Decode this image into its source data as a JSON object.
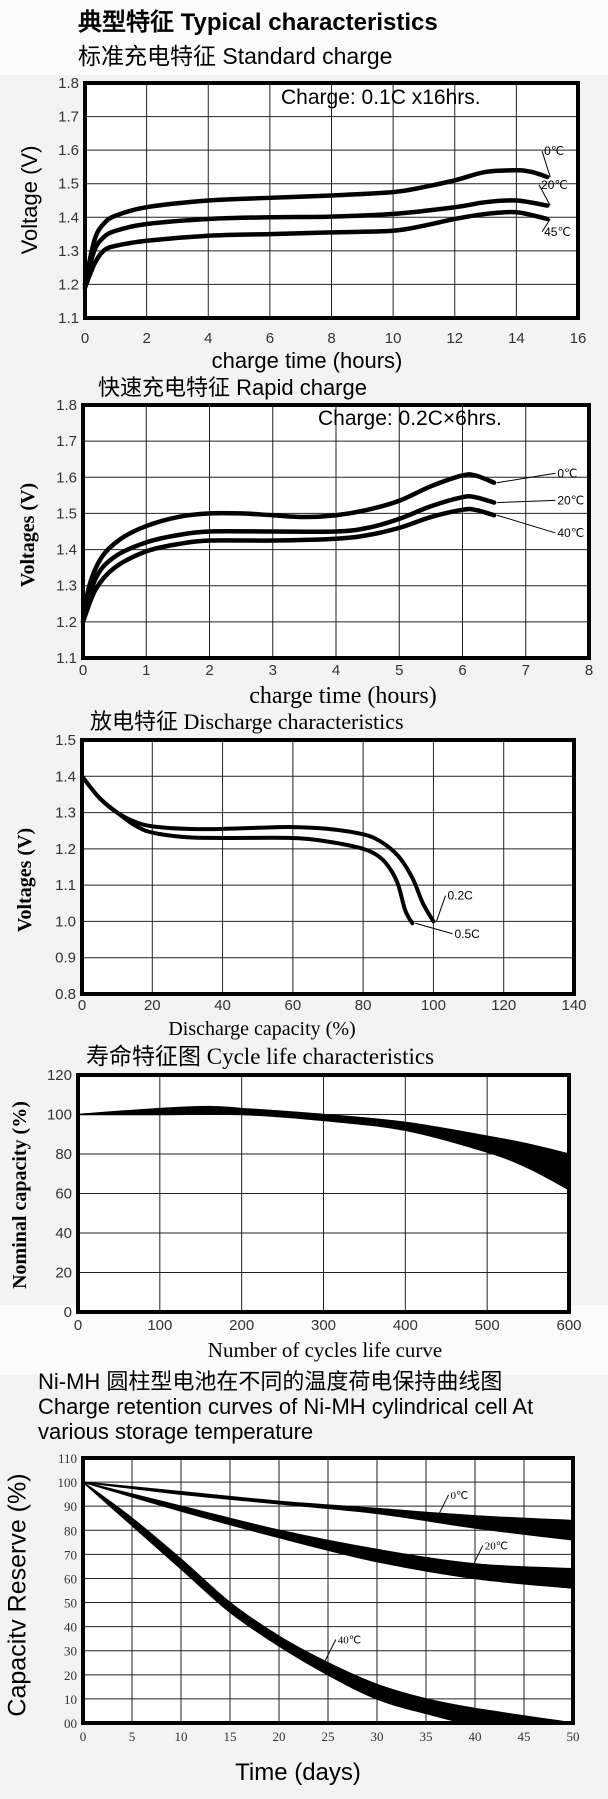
{
  "page": {
    "main_title": "典型特征 Typical characteristics",
    "retention_title_cn": "Ni-MH 圆柱型电池在不同的温度荷电保持曲线图",
    "retention_title_en_1": "Charge retention curves of Ni-MH cylindrical cell At",
    "retention_title_en_2": "various storage temperature"
  },
  "chart_data": [
    {
      "id": "standard",
      "type": "line",
      "title": "标准充电特征 Standard charge",
      "annotation": "Charge: 0.1C  x16hrs.",
      "xlabel": "charge time (hours)",
      "ylabel": "Voltage (V)",
      "xlim": [
        0,
        16
      ],
      "ylim": [
        1.1,
        1.8
      ],
      "xstep": 2,
      "ystep": 0.1,
      "xticks": [
        "0",
        "2",
        "4",
        "6",
        "8",
        "10",
        "12",
        "14",
        "16"
      ],
      "yticks": [
        "1.1",
        "1.2",
        "1.3",
        "1.4",
        "1.5",
        "1.6",
        "1.7",
        "1.8"
      ],
      "grid": true,
      "series": [
        {
          "name": "0℃",
          "label_at": [
            14.9,
            1.585
          ],
          "points": [
            [
              0,
              1.2
            ],
            [
              0.3,
              1.33
            ],
            [
              0.6,
              1.38
            ],
            [
              1,
              1.405
            ],
            [
              2,
              1.43
            ],
            [
              4,
              1.45
            ],
            [
              6,
              1.458
            ],
            [
              8,
              1.465
            ],
            [
              10,
              1.475
            ],
            [
              11,
              1.49
            ],
            [
              12,
              1.51
            ],
            [
              13,
              1.535
            ],
            [
              14,
              1.54
            ],
            [
              14.5,
              1.535
            ],
            [
              15,
              1.52
            ]
          ]
        },
        {
          "name": "20℃",
          "label_at": [
            14.8,
            1.485
          ],
          "points": [
            [
              0,
              1.2
            ],
            [
              0.3,
              1.3
            ],
            [
              0.6,
              1.34
            ],
            [
              1,
              1.36
            ],
            [
              2,
              1.38
            ],
            [
              4,
              1.395
            ],
            [
              6,
              1.4
            ],
            [
              8,
              1.402
            ],
            [
              10,
              1.41
            ],
            [
              12,
              1.43
            ],
            [
              13,
              1.445
            ],
            [
              14,
              1.45
            ],
            [
              15,
              1.435
            ]
          ]
        },
        {
          "name": "45℃",
          "label_at": [
            14.9,
            1.345
          ],
          "points": [
            [
              0,
              1.19
            ],
            [
              0.3,
              1.26
            ],
            [
              0.6,
              1.3
            ],
            [
              1,
              1.315
            ],
            [
              2,
              1.33
            ],
            [
              4,
              1.345
            ],
            [
              6,
              1.35
            ],
            [
              8,
              1.355
            ],
            [
              10,
              1.36
            ],
            [
              11,
              1.375
            ],
            [
              12,
              1.395
            ],
            [
              13,
              1.41
            ],
            [
              14,
              1.415
            ],
            [
              15,
              1.395
            ]
          ]
        }
      ]
    },
    {
      "id": "rapid",
      "type": "line",
      "title": "快速充电特征 Rapid charge",
      "annotation": "Charge: 0.2C×6hrs.",
      "xlabel": "charge time (hours)",
      "ylabel": "Voltages (V)",
      "xlim": [
        0,
        8
      ],
      "ylim": [
        1.1,
        1.8
      ],
      "xstep": 1,
      "ystep": 0.1,
      "xticks": [
        "0",
        "1",
        "2",
        "3",
        "4",
        "5",
        "6",
        "7",
        "8"
      ],
      "yticks": [
        "1.1",
        "1.2",
        "1.3",
        "1.4",
        "1.5",
        "1.6",
        "1.7",
        "1.8"
      ],
      "grid": true,
      "series": [
        {
          "name": "0℃",
          "label_at": [
            7.5,
            1.6
          ],
          "points": [
            [
              0,
              1.2
            ],
            [
              0.1,
              1.3
            ],
            [
              0.3,
              1.38
            ],
            [
              0.6,
              1.43
            ],
            [
              1,
              1.465
            ],
            [
              1.5,
              1.49
            ],
            [
              2,
              1.5
            ],
            [
              2.5,
              1.5
            ],
            [
              3,
              1.495
            ],
            [
              3.5,
              1.49
            ],
            [
              4,
              1.495
            ],
            [
              4.5,
              1.51
            ],
            [
              5,
              1.535
            ],
            [
              5.5,
              1.575
            ],
            [
              6,
              1.605
            ],
            [
              6.2,
              1.605
            ],
            [
              6.5,
              1.585
            ]
          ]
        },
        {
          "name": "20℃",
          "label_at": [
            7.5,
            1.525
          ],
          "points": [
            [
              0,
              1.2
            ],
            [
              0.2,
              1.32
            ],
            [
              0.5,
              1.38
            ],
            [
              1,
              1.42
            ],
            [
              1.5,
              1.44
            ],
            [
              2,
              1.45
            ],
            [
              3,
              1.45
            ],
            [
              4,
              1.45
            ],
            [
              4.5,
              1.46
            ],
            [
              5,
              1.485
            ],
            [
              5.5,
              1.52
            ],
            [
              6,
              1.545
            ],
            [
              6.2,
              1.545
            ],
            [
              6.5,
              1.53
            ]
          ]
        },
        {
          "name": "40℃",
          "label_at": [
            7.5,
            1.435
          ],
          "points": [
            [
              0,
              1.2
            ],
            [
              0.2,
              1.29
            ],
            [
              0.5,
              1.35
            ],
            [
              1,
              1.395
            ],
            [
              1.5,
              1.415
            ],
            [
              2,
              1.425
            ],
            [
              3,
              1.425
            ],
            [
              4,
              1.43
            ],
            [
              4.5,
              1.44
            ],
            [
              5,
              1.46
            ],
            [
              5.5,
              1.49
            ],
            [
              6,
              1.51
            ],
            [
              6.2,
              1.51
            ],
            [
              6.5,
              1.495
            ]
          ]
        }
      ]
    },
    {
      "id": "discharge",
      "type": "line",
      "title": "放电特征 Discharge characteristics",
      "xlabel": "Discharge capacity (%)",
      "ylabel": "Voltages (V)",
      "xlim": [
        0,
        140
      ],
      "ylim": [
        0.8,
        1.5
      ],
      "xstep": 20,
      "ystep": 0.1,
      "xticks": [
        "0",
        "20",
        "40",
        "60",
        "80",
        "100",
        "120",
        "140"
      ],
      "yticks": [
        "0.8",
        "0.9",
        "1.0",
        "1.1",
        "1.2",
        "1.3",
        "1.4",
        "1.5"
      ],
      "grid": true,
      "series": [
        {
          "name": "0.2C",
          "label_at": [
            104,
            1.06
          ],
          "points": [
            [
              0,
              1.4
            ],
            [
              5,
              1.34
            ],
            [
              10,
              1.3
            ],
            [
              15,
              1.275
            ],
            [
              20,
              1.262
            ],
            [
              30,
              1.255
            ],
            [
              40,
              1.255
            ],
            [
              50,
              1.258
            ],
            [
              60,
              1.26
            ],
            [
              70,
              1.255
            ],
            [
              80,
              1.24
            ],
            [
              85,
              1.22
            ],
            [
              90,
              1.18
            ],
            [
              94,
              1.12
            ],
            [
              97,
              1.05
            ],
            [
              100,
              1.0
            ]
          ]
        },
        {
          "name": "0.5C",
          "label_at": [
            106,
            0.955
          ],
          "points": [
            [
              0,
              1.4
            ],
            [
              5,
              1.34
            ],
            [
              10,
              1.3
            ],
            [
              15,
              1.265
            ],
            [
              20,
              1.245
            ],
            [
              30,
              1.232
            ],
            [
              40,
              1.23
            ],
            [
              60,
              1.23
            ],
            [
              70,
              1.22
            ],
            [
              80,
              1.2
            ],
            [
              85,
              1.175
            ],
            [
              88,
              1.14
            ],
            [
              90,
              1.1
            ],
            [
              92,
              1.03
            ],
            [
              94,
              0.995
            ]
          ]
        }
      ]
    },
    {
      "id": "cycle",
      "type": "area",
      "title": "寿命特征图 Cycle life characteristics",
      "xlabel": "Number of cycles life curve",
      "ylabel": "Nominal capacity (%)",
      "xlim": [
        0,
        600
      ],
      "ylim": [
        0,
        120
      ],
      "xstep": 100,
      "ystep": 20,
      "xticks": [
        "0",
        "100",
        "200",
        "300",
        "400",
        "500",
        "600"
      ],
      "yticks": [
        "0",
        "20",
        "40",
        "60",
        "80",
        "100",
        "120"
      ],
      "grid": true,
      "series": [
        {
          "name": "",
          "upper": [
            [
              0,
              100
            ],
            [
              100,
              103
            ],
            [
              160,
              104
            ],
            [
              200,
              103
            ],
            [
              300,
              100
            ],
            [
              400,
              96
            ],
            [
              500,
              89
            ],
            [
              550,
              85
            ],
            [
              600,
              80
            ]
          ],
          "lower": [
            [
              0,
              100
            ],
            [
              100,
              100
            ],
            [
              200,
              100
            ],
            [
              300,
              97
            ],
            [
              400,
              92
            ],
            [
              500,
              81
            ],
            [
              550,
              73
            ],
            [
              600,
              62
            ]
          ]
        }
      ]
    },
    {
      "id": "retention",
      "type": "area",
      "xlabel": "Time (days)",
      "ylabel": "Capacitv Reserve (%)",
      "xlim": [
        0,
        50
      ],
      "ylim": [
        0,
        110
      ],
      "xstep": 5,
      "ystep": 10,
      "xticks": [
        "0",
        "5",
        "10",
        "15",
        "20",
        "25",
        "30",
        "35",
        "40",
        "45",
        "50"
      ],
      "yticks": [
        "00",
        "10",
        "20",
        "30",
        "40",
        "50",
        "60",
        "70",
        "80",
        "90",
        "100",
        "110"
      ],
      "grid": true,
      "series": [
        {
          "name": "0℃",
          "label_at": [
            37.5,
            93
          ],
          "upper": [
            [
              0,
              100
            ],
            [
              10,
              96
            ],
            [
              20,
              92
            ],
            [
              30,
              89
            ],
            [
              40,
              86
            ],
            [
              50,
              84
            ]
          ],
          "lower": [
            [
              0,
              100
            ],
            [
              10,
              95
            ],
            [
              20,
              91
            ],
            [
              30,
              87
            ],
            [
              40,
              81
            ],
            [
              50,
              76
            ]
          ]
        },
        {
          "name": "20℃",
          "label_at": [
            41,
            72
          ],
          "upper": [
            [
              0,
              100
            ],
            [
              10,
              90
            ],
            [
              20,
              80
            ],
            [
              30,
              72
            ],
            [
              40,
              66
            ],
            [
              50,
              64
            ]
          ],
          "lower": [
            [
              0,
              100
            ],
            [
              10,
              88
            ],
            [
              20,
              77
            ],
            [
              30,
              67
            ],
            [
              40,
              60
            ],
            [
              50,
              56
            ]
          ]
        },
        {
          "name": "40℃",
          "label_at": [
            26,
            33
          ],
          "upper": [
            [
              0,
              100
            ],
            [
              5,
              85
            ],
            [
              10,
              68
            ],
            [
              15,
              50
            ],
            [
              20,
              36
            ],
            [
              25,
              25
            ],
            [
              30,
              16
            ],
            [
              35,
              10
            ],
            [
              40,
              6
            ],
            [
              50,
              0
            ]
          ],
          "lower": [
            [
              0,
              100
            ],
            [
              5,
              82
            ],
            [
              10,
              64
            ],
            [
              15,
              46
            ],
            [
              20,
              32
            ],
            [
              25,
              20
            ],
            [
              30,
              10
            ],
            [
              35,
              4
            ],
            [
              40,
              0
            ],
            [
              50,
              0
            ]
          ]
        }
      ]
    }
  ]
}
